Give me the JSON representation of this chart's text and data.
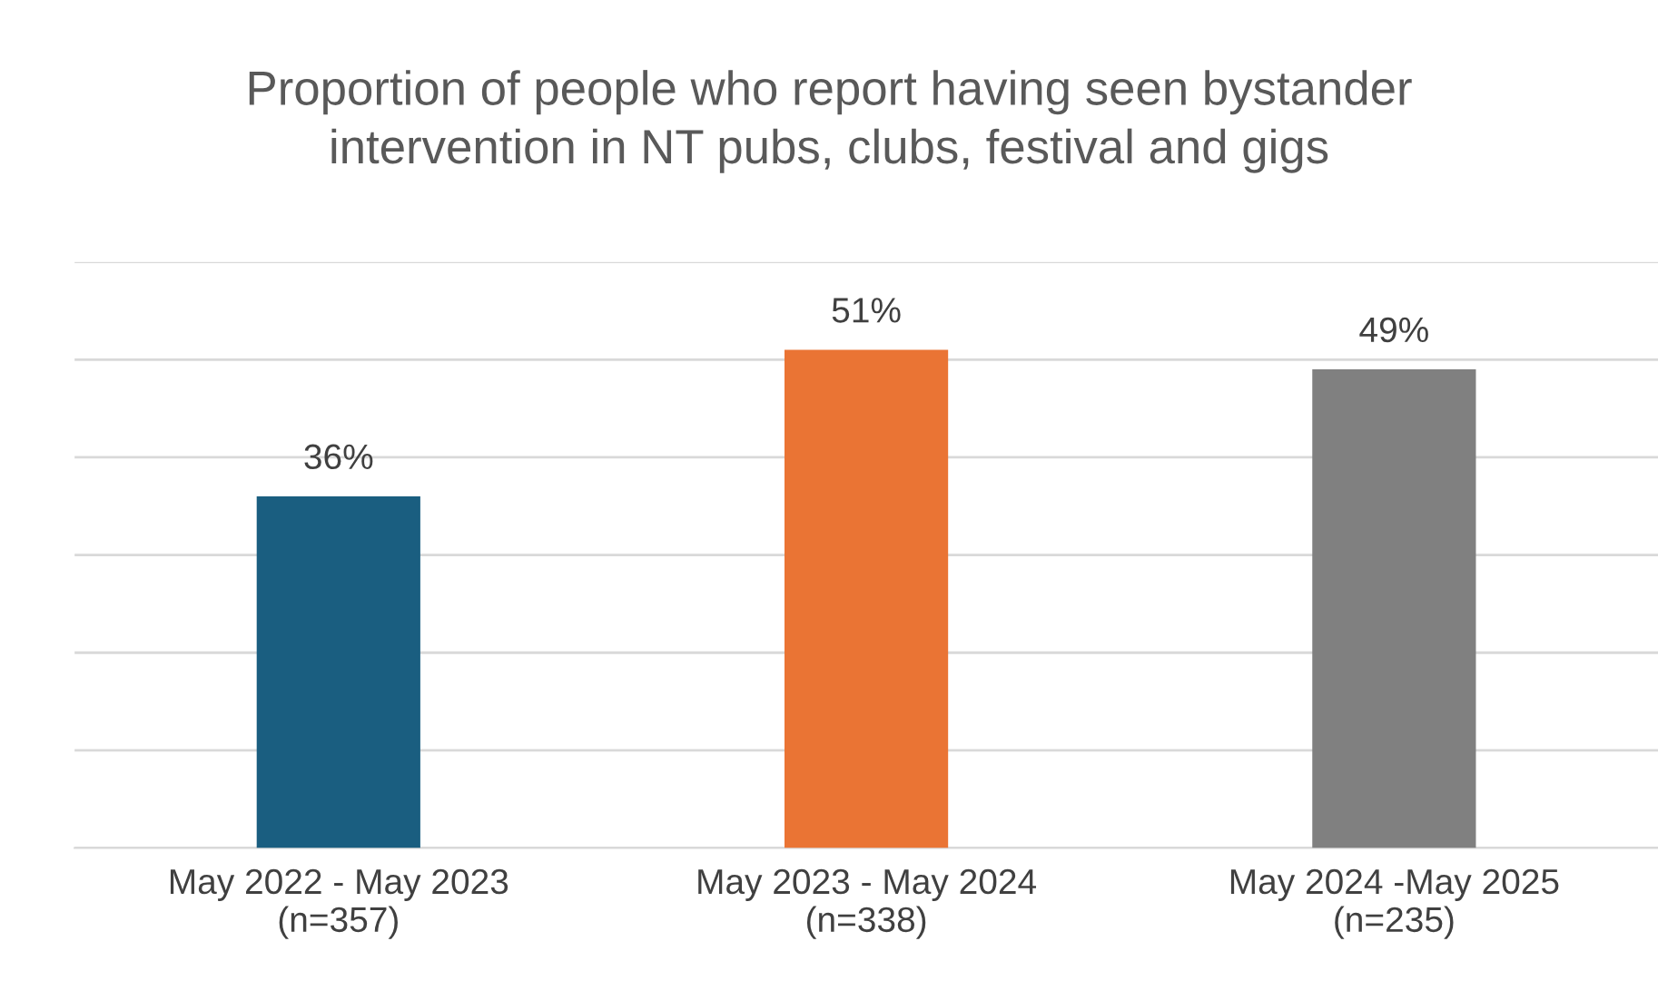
{
  "chart_data": {
    "type": "bar",
    "title": "Proportion of people who report having seen bystander\nintervention in NT pubs, clubs, festival and gigs",
    "categories": [
      "May 2022 - May 2023\n(n=357)",
      "May 2023 - May 2024\n(n=338)",
      "May 2024 -May 2025\n(n=235)"
    ],
    "values": [
      36,
      51,
      49
    ],
    "colors": [
      "#1a5e80",
      "#ea7434",
      "#808080"
    ],
    "value_labels": [
      "36%",
      "51%",
      "49%"
    ],
    "ylim": [
      0,
      60
    ],
    "yticks": [
      {
        "value": 0,
        "label": null
      },
      {
        "value": 10,
        "label": null
      },
      {
        "value": 20,
        "label": null
      },
      {
        "value": 30,
        "label": null
      },
      {
        "value": 40,
        "label": null
      },
      {
        "value": 50,
        "label": null
      },
      {
        "value": 60,
        "label": null
      }
    ],
    "grid": "y",
    "tick_labels": "x",
    "legend": false
  }
}
